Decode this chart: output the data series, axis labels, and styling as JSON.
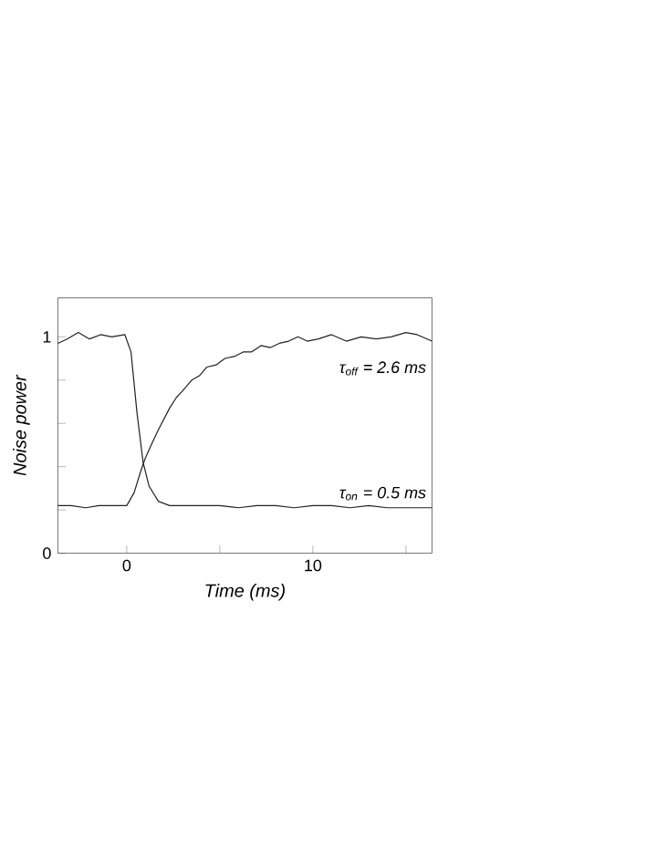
{
  "chart_data": {
    "type": "line",
    "xlabel": "Time (ms)",
    "ylabel": "Noise power",
    "xlim": [
      -3.7,
      16.4
    ],
    "ylim": [
      0,
      1.18
    ],
    "xticks": [
      0,
      {
        "value": 5,
        "label": null
      },
      10,
      {
        "value": 15,
        "label": null
      }
    ],
    "yticks": [
      0,
      {
        "value": 0.2,
        "label": null
      },
      {
        "value": 0.4,
        "label": null
      },
      {
        "value": 0.6,
        "label": null
      },
      {
        "value": 0.8,
        "label": null
      },
      1
    ],
    "marker": "none",
    "line_style": "solid",
    "grid": false,
    "legend": false,
    "series": [
      {
        "name": "τ$_{off}$ = 2.6 *ms*",
        "color": "#222222",
        "x": [
          -3.7,
          -3.0,
          -2.2,
          -1.5,
          -0.8,
          0,
          0.4,
          0.72,
          1.0,
          1.37,
          1.7,
          2.0,
          2.3,
          2.67,
          3.0,
          3.49,
          3.9,
          4.3,
          4.8,
          5.28,
          5.8,
          6.25,
          6.7,
          7.23,
          7.7,
          8.2,
          8.7,
          9.2,
          9.7,
          10.3,
          11.0,
          11.8,
          12.6,
          13.4,
          14.2,
          15.0,
          15.6,
          16.4
        ],
        "values": [
          0.22,
          0.22,
          0.21,
          0.22,
          0.22,
          0.22,
          0.28,
          0.37,
          0.44,
          0.51,
          0.57,
          0.62,
          0.67,
          0.72,
          0.75,
          0.8,
          0.82,
          0.86,
          0.87,
          0.9,
          0.91,
          0.93,
          0.93,
          0.96,
          0.95,
          0.97,
          0.98,
          1.0,
          0.98,
          0.99,
          1.01,
          0.98,
          1.0,
          0.99,
          1.0,
          1.02,
          1.01,
          0.98
        ]
      },
      {
        "name": "τ$_{on}$ = 0.5 *ms*",
        "color": "#222222",
        "x": [
          -3.7,
          -3.2,
          -2.6,
          -2.0,
          -1.4,
          -0.8,
          -0.1,
          0.23,
          0.55,
          0.88,
          1.2,
          1.7,
          2.3,
          3.0,
          4.0,
          5.0,
          6.0,
          7.0,
          8.0,
          9.0,
          10.0,
          11.0,
          12.0,
          13.0,
          14.0,
          15.0,
          16.4
        ],
        "values": [
          0.97,
          0.99,
          1.02,
          0.99,
          1.01,
          1.0,
          1.01,
          0.93,
          0.65,
          0.42,
          0.31,
          0.24,
          0.22,
          0.22,
          0.22,
          0.22,
          0.21,
          0.22,
          0.22,
          0.21,
          0.22,
          0.22,
          0.21,
          0.22,
          0.21,
          0.21,
          0.21
        ]
      }
    ]
  }
}
